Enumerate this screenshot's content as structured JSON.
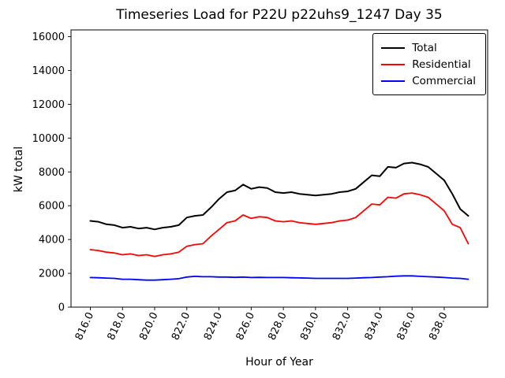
{
  "chart_data": {
    "type": "line",
    "title": "Timeseries Load for P22U p22uhs9_1247  Day 35",
    "xlabel": "Hour of Year",
    "ylabel": "kW total",
    "xlim": [
      814.8,
      840.7
    ],
    "ylim": [
      0,
      16400
    ],
    "grid": false,
    "legend_position": "upper right",
    "x_ticks": [
      816,
      818,
      820,
      822,
      824,
      826,
      828,
      830,
      832,
      834,
      836,
      838
    ],
    "x_tick_labels": [
      "816.0",
      "818.0",
      "820.0",
      "822.0",
      "824.0",
      "826.0",
      "828.0",
      "830.0",
      "832.0",
      "834.0",
      "836.0",
      "838.0"
    ],
    "y_ticks": [
      0,
      2000,
      4000,
      6000,
      8000,
      10000,
      12000,
      14000,
      16000
    ],
    "x": [
      816.0,
      816.5,
      817.0,
      817.5,
      818.0,
      818.5,
      819.0,
      819.5,
      820.0,
      820.5,
      821.0,
      821.5,
      822.0,
      822.5,
      823.0,
      823.5,
      824.0,
      824.5,
      825.0,
      825.5,
      826.0,
      826.5,
      827.0,
      827.5,
      828.0,
      828.5,
      829.0,
      829.5,
      830.0,
      830.5,
      831.0,
      831.5,
      832.0,
      832.5,
      833.0,
      833.5,
      834.0,
      834.5,
      835.0,
      835.5,
      836.0,
      836.5,
      837.0,
      837.5,
      838.0,
      838.5,
      839.0,
      839.5
    ],
    "series": [
      {
        "name": "Total",
        "color": "#000000",
        "values": [
          5100,
          5050,
          4900,
          4850,
          4700,
          4750,
          4650,
          4700,
          4600,
          4700,
          4750,
          4850,
          5300,
          5400,
          5450,
          5900,
          6400,
          6800,
          6900,
          7250,
          7000,
          7100,
          7050,
          6800,
          6750,
          6800,
          6700,
          6650,
          6600,
          6650,
          6700,
          6800,
          6850,
          7000,
          7400,
          7800,
          7750,
          8300,
          8250,
          8500,
          8550,
          8450,
          8300,
          7900,
          7500,
          6700,
          5800,
          5400
        ]
      },
      {
        "name": "Residential",
        "color": "#ff0000",
        "values": [
          3400,
          3350,
          3250,
          3200,
          3100,
          3150,
          3050,
          3100,
          3000,
          3100,
          3150,
          3250,
          3600,
          3700,
          3750,
          4200,
          4600,
          5000,
          5100,
          5450,
          5250,
          5350,
          5300,
          5100,
          5050,
          5100,
          5000,
          4950,
          4900,
          4950,
          5000,
          5100,
          5150,
          5300,
          5700,
          6100,
          6050,
          6500,
          6450,
          6700,
          6750,
          6650,
          6500,
          6100,
          5700,
          4900,
          4700,
          3750
        ]
      },
      {
        "name": "Commercial",
        "color": "#0000ff",
        "values": [
          1750,
          1740,
          1720,
          1700,
          1650,
          1650,
          1620,
          1600,
          1600,
          1620,
          1650,
          1680,
          1780,
          1820,
          1800,
          1800,
          1780,
          1780,
          1760,
          1780,
          1750,
          1760,
          1750,
          1750,
          1750,
          1740,
          1730,
          1720,
          1700,
          1700,
          1700,
          1700,
          1700,
          1720,
          1740,
          1750,
          1780,
          1800,
          1830,
          1850,
          1850,
          1820,
          1800,
          1780,
          1750,
          1720,
          1700,
          1650
        ]
      }
    ]
  }
}
